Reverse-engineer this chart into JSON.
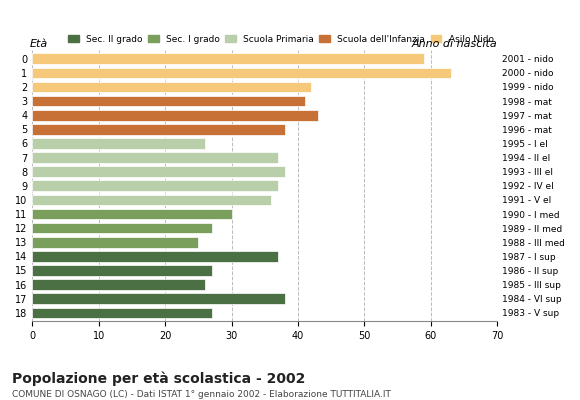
{
  "ages": [
    18,
    17,
    16,
    15,
    14,
    13,
    12,
    11,
    10,
    9,
    8,
    7,
    6,
    5,
    4,
    3,
    2,
    1,
    0
  ],
  "values": [
    27,
    38,
    26,
    27,
    37,
    25,
    27,
    30,
    36,
    37,
    38,
    37,
    26,
    38,
    43,
    41,
    42,
    63,
    59
  ],
  "anno_nascita": [
    "1983 - V sup",
    "1984 - VI sup",
    "1985 - III sup",
    "1986 - II sup",
    "1987 - I sup",
    "1988 - III med",
    "1989 - II med",
    "1990 - I med",
    "1991 - V el",
    "1992 - IV el",
    "1993 - III el",
    "1994 - II el",
    "1995 - I el",
    "1996 - mat",
    "1997 - mat",
    "1998 - mat",
    "1999 - nido",
    "2000 - nido",
    "2001 - nido"
  ],
  "colors": [
    "#4a7043",
    "#4a7043",
    "#4a7043",
    "#4a7043",
    "#4a7043",
    "#7a9e5c",
    "#7a9e5c",
    "#7a9e5c",
    "#b8cfaa",
    "#b8cfaa",
    "#b8cfaa",
    "#b8cfaa",
    "#b8cfaa",
    "#c87137",
    "#c87137",
    "#c87137",
    "#f5c87a",
    "#f5c87a",
    "#f5c87a"
  ],
  "legend_labels": [
    "Sec. II grado",
    "Sec. I grado",
    "Scuola Primaria",
    "Scuola dell'Infanzia",
    "Asilo Nido"
  ],
  "legend_colors": [
    "#4a7043",
    "#7a9e5c",
    "#b8cfaa",
    "#c87137",
    "#f5c87a"
  ],
  "title": "Popolazione per età scolastica - 2002",
  "subtitle": "COMUNE DI OSNAGO (LC) - Dati ISTAT 1° gennaio 2002 - Elaborazione TUTTITALIA.IT",
  "xlabel_left": "Età",
  "xlabel_right": "Anno di nascita",
  "xlim": [
    0,
    70
  ],
  "xticks": [
    0,
    10,
    20,
    30,
    40,
    50,
    60,
    70
  ],
  "background_color": "#ffffff",
  "grid_color": "#bbbbbb",
  "bar_height": 0.75
}
